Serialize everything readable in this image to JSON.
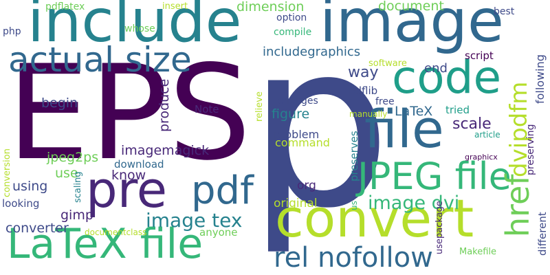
{
  "background": "#ffffff",
  "palette": [
    "#440154",
    "#482878",
    "#3e4a89",
    "#31688e",
    "#26828e",
    "#1f9e89",
    "#35b779",
    "#6ece58",
    "#b5de2b",
    "#fde725"
  ],
  "words": [
    {
      "text": "p",
      "color": "#3e4a89"
    },
    {
      "text": "EPS",
      "color": "#440154"
    },
    {
      "text": "include",
      "color": "#26828e"
    },
    {
      "text": "image",
      "color": "#31688e"
    },
    {
      "text": "convert",
      "color": "#b5de2b"
    },
    {
      "text": "file",
      "color": "#31688e"
    },
    {
      "text": "code",
      "color": "#1f9e89"
    },
    {
      "text": "pre",
      "color": "#482878"
    },
    {
      "text": "pdf",
      "color": "#31688e"
    },
    {
      "text": "LaTeX file",
      "color": "#35b779"
    },
    {
      "text": "JPEG file",
      "color": "#35b779"
    },
    {
      "text": "actual size",
      "color": "#31688e"
    },
    {
      "text": "rel nofollow",
      "color": "#31688e"
    },
    {
      "text": "href",
      "color": "#6ece58"
    },
    {
      "text": "dvipdfm",
      "color": "#b5de2b"
    },
    {
      "text": "image tex",
      "color": "#26828e"
    },
    {
      "text": "image dvi",
      "color": "#35b779"
    },
    {
      "text": "includegraphics",
      "color": "#31688e"
    },
    {
      "text": "scale",
      "color": "#482878"
    },
    {
      "text": "figure",
      "color": "#26828e"
    },
    {
      "text": "LaTeX",
      "color": "#31688e"
    },
    {
      "text": "imagemagick",
      "color": "#482878"
    },
    {
      "text": "jpeg2ps",
      "color": "#6ece58"
    },
    {
      "text": "dimension",
      "color": "#6ece58"
    },
    {
      "text": "document",
      "color": "#6ece58"
    },
    {
      "text": "way",
      "color": "#3e4a89"
    },
    {
      "text": "end",
      "color": "#3e4a89"
    },
    {
      "text": "begin",
      "color": "#3e4a89"
    },
    {
      "text": "produce",
      "color": "#482878"
    },
    {
      "text": "use",
      "color": "#6ece58"
    },
    {
      "text": "know",
      "color": "#482878"
    },
    {
      "text": "using",
      "color": "#3e4a89"
    },
    {
      "text": "gimp",
      "color": "#482878"
    },
    {
      "text": "converter",
      "color": "#3e4a89"
    },
    {
      "text": "original",
      "color": "#b5de2b"
    },
    {
      "text": "org",
      "color": "#482878"
    },
    {
      "text": "following",
      "color": "#3e4a89"
    },
    {
      "text": "preserves",
      "color": "#26828e"
    },
    {
      "text": "problem",
      "color": "#3e4a89"
    },
    {
      "text": "command",
      "color": "#b5de2b"
    },
    {
      "text": "pdflatex",
      "color": "#6ece58"
    },
    {
      "text": "insert",
      "color": "#b5de2b"
    },
    {
      "text": "option",
      "color": "#3e4a89"
    },
    {
      "text": "best",
      "color": "#3e4a89"
    },
    {
      "text": "php",
      "color": "#3e4a89"
    },
    {
      "text": "whose",
      "color": "#6ece58"
    },
    {
      "text": "compile",
      "color": "#35b779"
    },
    {
      "text": "script",
      "color": "#440154"
    },
    {
      "text": "software",
      "color": "#b5de2b"
    },
    {
      "text": "changes",
      "color": "#3e4a89"
    },
    {
      "text": "pdflib",
      "color": "#3e4a89"
    },
    {
      "text": "free",
      "color": "#3e4a89"
    },
    {
      "text": "tried",
      "color": "#1f9e89"
    },
    {
      "text": "manually",
      "color": "#b5de2b"
    },
    {
      "text": "article",
      "color": "#1f9e89"
    },
    {
      "text": "Note",
      "color": "#482878"
    },
    {
      "text": "relieve",
      "color": "#b5de2b"
    },
    {
      "text": "download",
      "color": "#31688e"
    },
    {
      "text": "anyone",
      "color": "#6ece58"
    },
    {
      "text": "scaling",
      "color": "#26828e"
    },
    {
      "text": "conversion",
      "color": "#b5de2b"
    },
    {
      "text": "looking",
      "color": "#3e4a89"
    },
    {
      "text": "documentclass",
      "color": "#b5de2b"
    },
    {
      "text": "us",
      "color": "#35b779"
    },
    {
      "text": "usepackage",
      "color": "#482878"
    },
    {
      "text": "Makefile",
      "color": "#6ece58"
    },
    {
      "text": "preserving",
      "color": "#482878"
    },
    {
      "text": "graphicx",
      "color": "#440154"
    },
    {
      "text": "different",
      "color": "#3e4a89"
    }
  ]
}
